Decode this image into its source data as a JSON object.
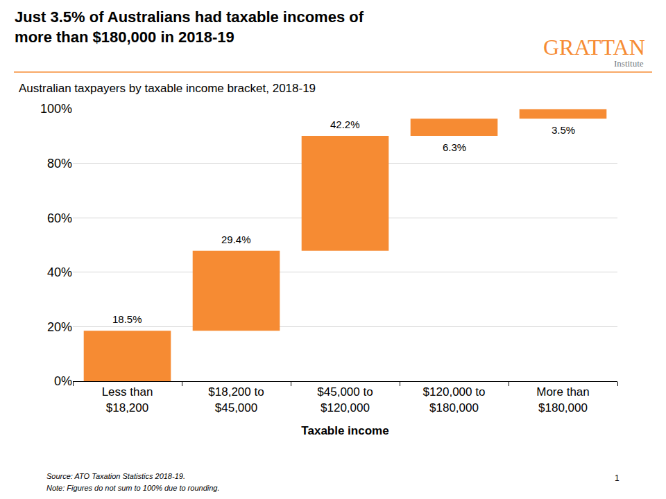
{
  "chart_data": {
    "type": "waterfall",
    "title": "Just 3.5% of Australians had taxable incomes of more than $180,000 in 2018-19",
    "subtitle": "Australian taxpayers by taxable income bracket, 2018-19",
    "x_label": "Taxable income",
    "brand": "GRATTAN",
    "brand_subtitle": "Institute",
    "source": "Source: ATO Taxation Statistics 2018-19.",
    "note": "Note: Figures do not sum to 100% due to rounding.",
    "page_number": "1",
    "categories": [
      "Less than $18,200",
      "$18,200 to $45,000",
      "$45,000 to $120,000",
      "$120,000 to $180,000",
      "More than $180,000"
    ],
    "values": [
      18.5,
      29.4,
      42.2,
      6.3,
      3.5
    ],
    "value_labels": [
      "18.5%",
      "29.4%",
      "42.2%",
      "6.3%",
      "3.5%"
    ],
    "data_labels": true,
    "color": "#F68B33",
    "ylim": [
      0,
      100
    ],
    "yticks": [
      {
        "value": 0,
        "label": "0%"
      },
      {
        "value": 20,
        "label": "20%"
      },
      {
        "value": 40,
        "label": "40%"
      },
      {
        "value": 60,
        "label": "60%"
      },
      {
        "value": 80,
        "label": "80%"
      },
      {
        "value": 100,
        "label": "100%"
      }
    ],
    "grid": true
  }
}
